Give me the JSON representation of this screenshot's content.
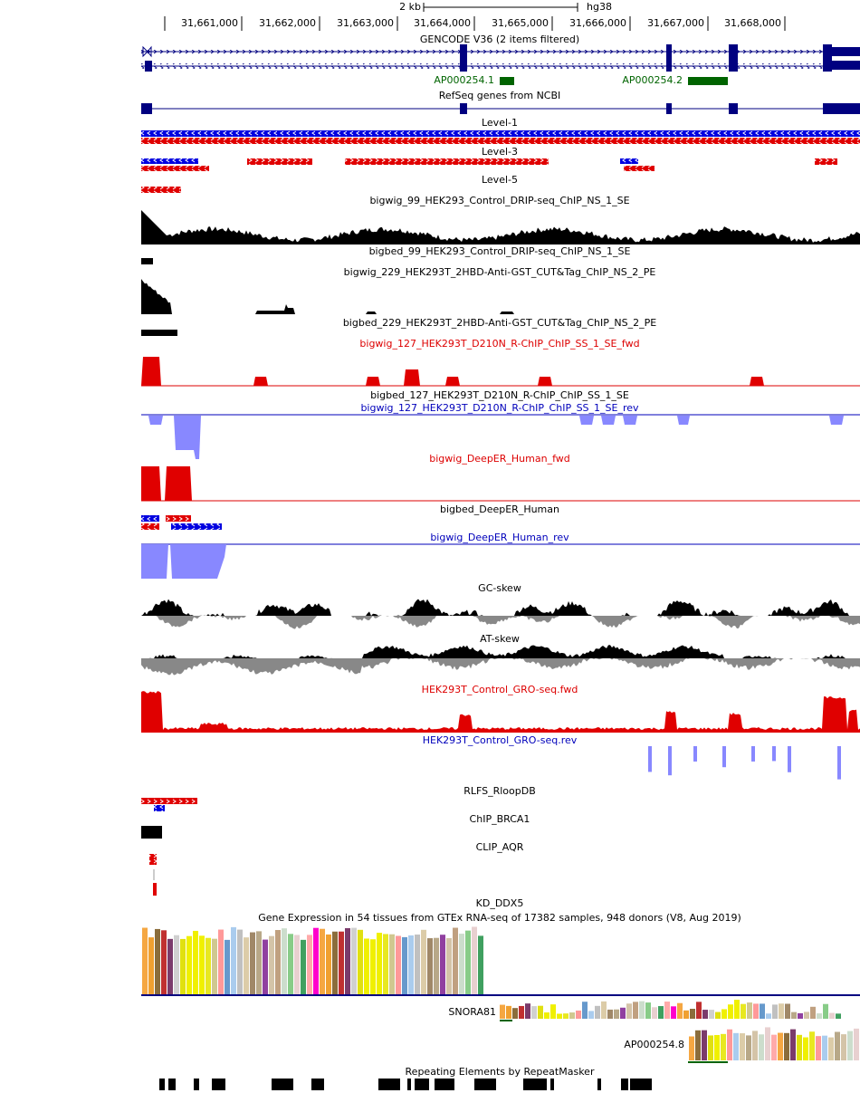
{
  "ruler": {
    "scale": "2 kb",
    "assembly": "hg38",
    "positions": [
      "31,661,000",
      "31,662,000",
      "31,663,000",
      "31,664,000",
      "31,665,000",
      "31,666,000",
      "31,667,000",
      "31,668,000"
    ]
  },
  "tracks": [
    {
      "label": "GENCODE V36 (2 items filtered)",
      "color": "#000000"
    },
    {
      "label": "RefSeq genes from NCBI",
      "color": "#000000"
    },
    {
      "label": "Level-1",
      "color": "#000000"
    },
    {
      "label": "Level-3",
      "color": "#000000"
    },
    {
      "label": "Level-5",
      "color": "#000000"
    },
    {
      "label": "bigwig_99_HEK293_Control_DRIP-seq_ChIP_NS_1_SE",
      "color": "#000000"
    },
    {
      "label": "bigbed_99_HEK293_Control_DRIP-seq_ChIP_NS_1_SE",
      "color": "#000000"
    },
    {
      "label": "bigwig_229_HEK293T_2HBD-Anti-GST_CUT&Tag_ChIP_NS_2_PE",
      "color": "#000000"
    },
    {
      "label": "bigbed_229_HEK293T_2HBD-Anti-GST_CUT&Tag_ChIP_NS_2_PE",
      "color": "#000000"
    },
    {
      "label": "bigwig_127_HEK293T_D210N_R-ChIP_ChIP_SS_1_SE_fwd",
      "color": "#dd0000"
    },
    {
      "label": "bigbed_127_HEK293T_D210N_R-ChIP_ChIP_SS_1_SE",
      "color": "#000000"
    },
    {
      "label": "bigwig_127_HEK293T_D210N_R-ChIP_ChIP_SS_1_SE_rev",
      "color": "#0000bb"
    },
    {
      "label": "bigwig_DeepER_Human_fwd",
      "color": "#dd0000"
    },
    {
      "label": "bigbed_DeepER_Human",
      "color": "#000000"
    },
    {
      "label": "bigwig_DeepER_Human_rev",
      "color": "#0000bb"
    },
    {
      "label": "GC-skew",
      "color": "#000000"
    },
    {
      "label": "AT-skew",
      "color": "#000000"
    },
    {
      "label": "HEK293T_Control_GRO-seq.fwd",
      "color": "#dd0000"
    },
    {
      "label": "HEK293T_Control_GRO-seq.rev",
      "color": "#0000bb"
    },
    {
      "label": "RLFS_RloopDB",
      "color": "#000000"
    },
    {
      "label": "ChIP_BRCA1",
      "color": "#000000"
    },
    {
      "label": "CLIP_AQR",
      "color": "#000000"
    },
    {
      "label": "KD_DDX5",
      "color": "#000000"
    },
    {
      "label": "Gene Expression in 54 tissues from GTEx RNA-seq of 17382 samples, 948 donors (V8, Aug 2019)",
      "color": "#000000"
    },
    {
      "label": "Repeating Elements by RepeatMasker",
      "color": "#000000"
    }
  ],
  "features": [
    "AP000254.1",
    "AP000254.2",
    "SNORA81",
    "AP000254.8"
  ]
}
